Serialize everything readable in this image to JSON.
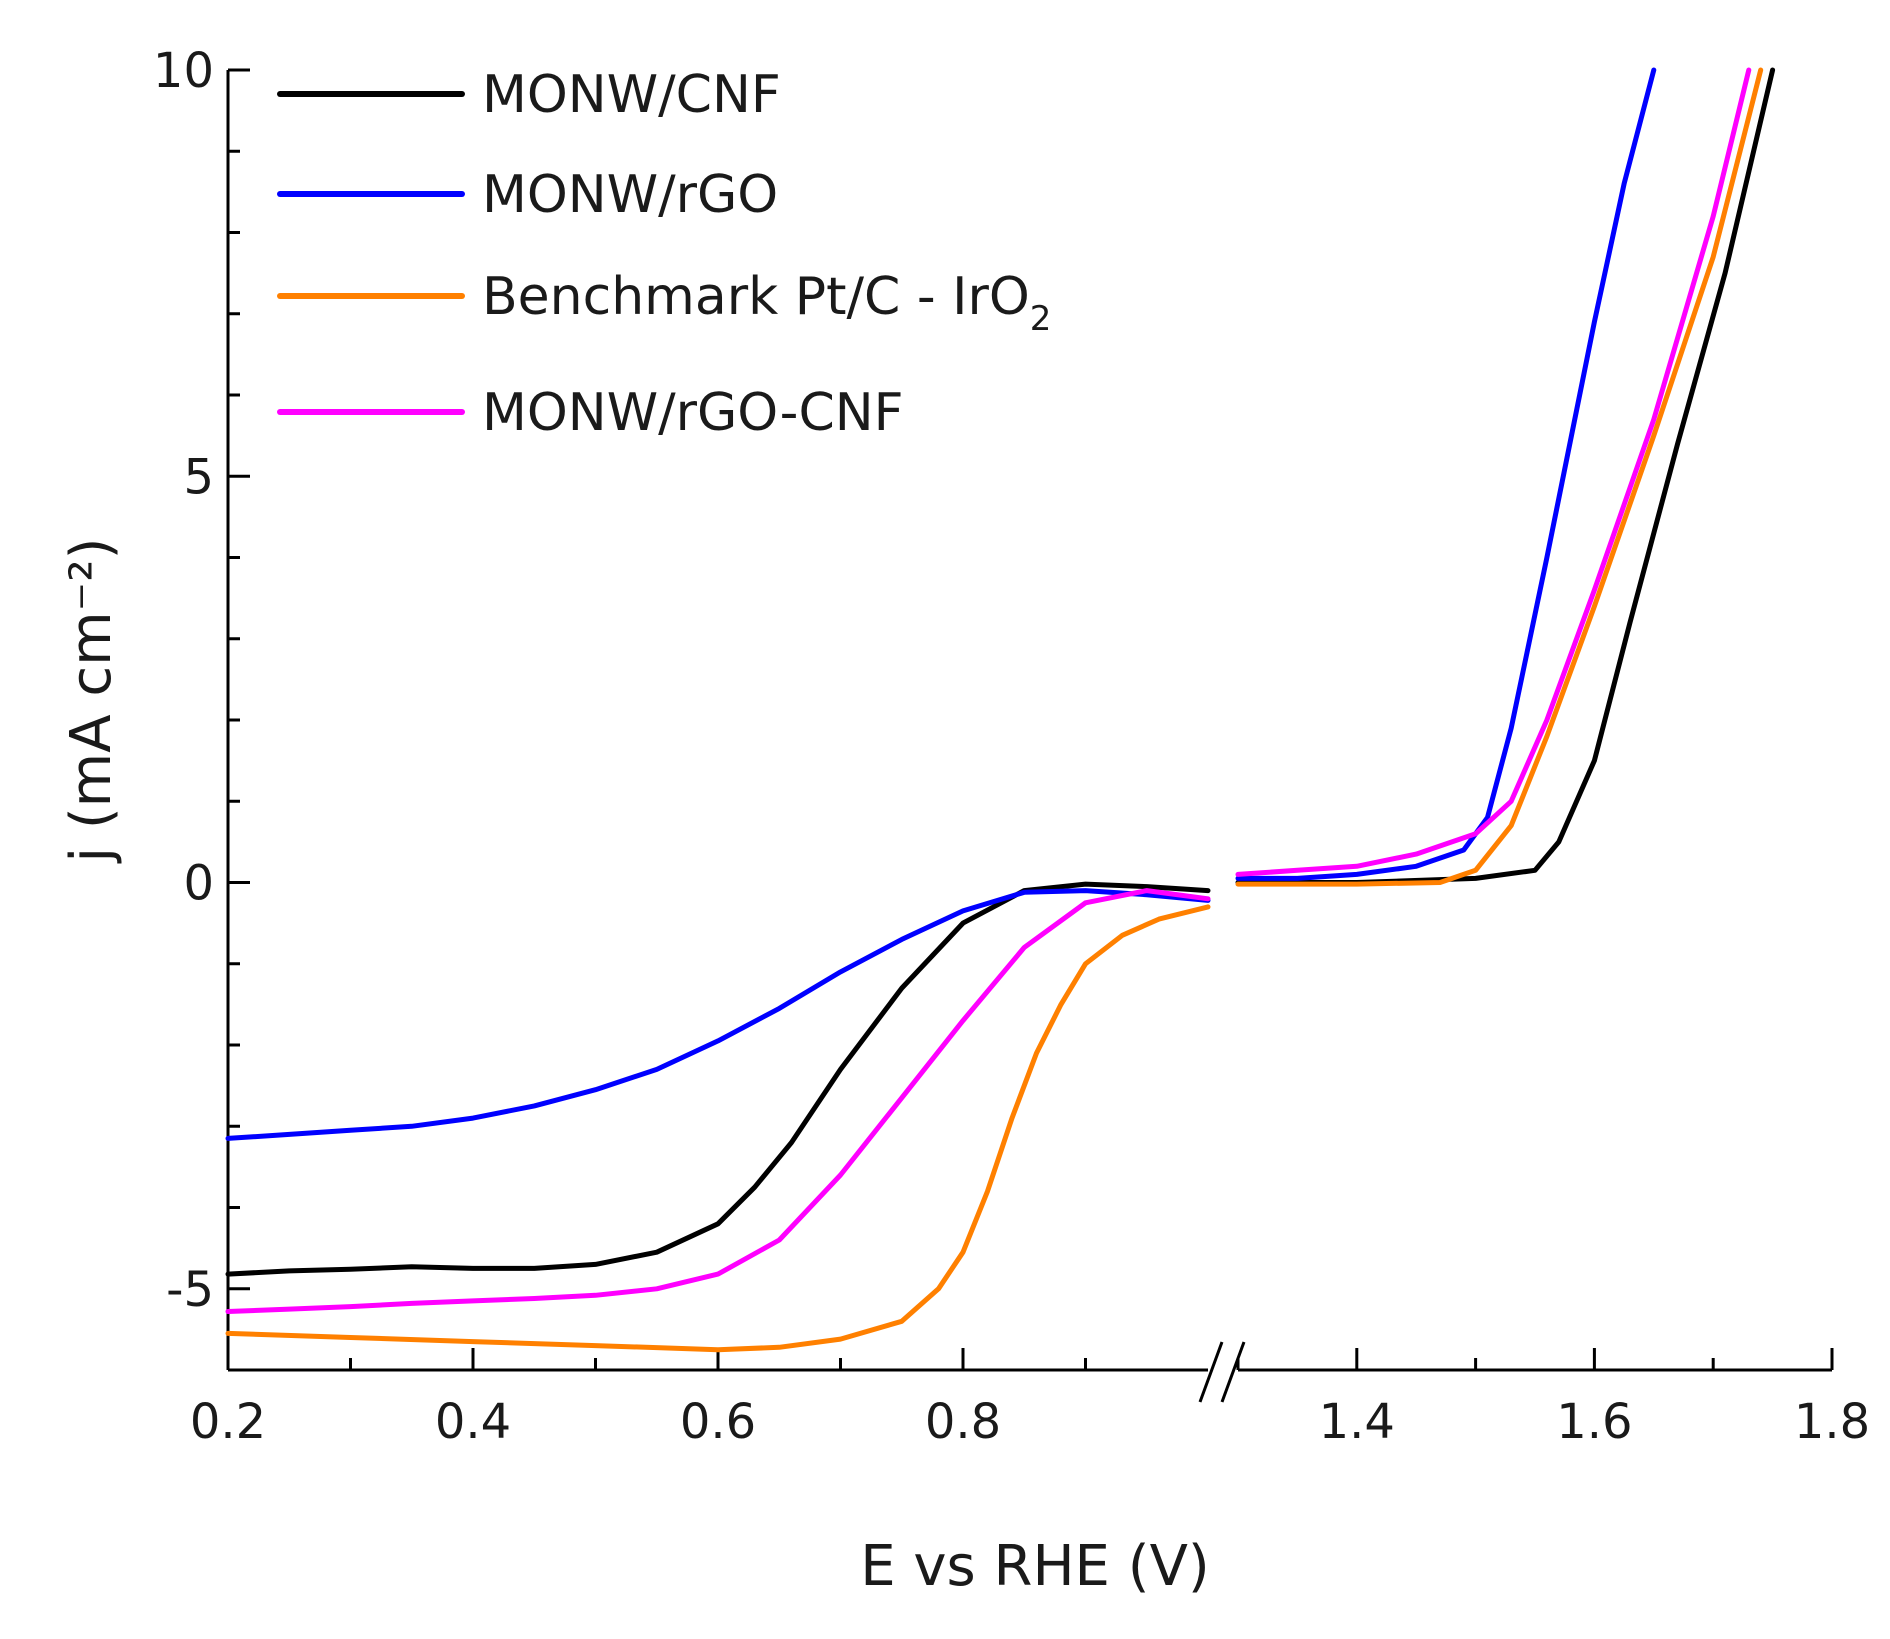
{
  "chart_data": {
    "type": "line",
    "title": "",
    "xlabel": "E vs RHE (V)",
    "ylabel": "j (mA cm⁻²)",
    "xlim_left": [
      0.2,
      1.0
    ],
    "xlim_right": [
      1.3,
      1.8
    ],
    "ylim": [
      -6,
      10
    ],
    "axis_break": "between 1.0 and 1.3 V",
    "x_ticks_left": [
      "0.2",
      "0.4",
      "0.6",
      "0.8"
    ],
    "x_ticks_right": [
      "1.4",
      "1.6",
      "1.8"
    ],
    "y_ticks": [
      "10",
      "5",
      "0",
      "-5"
    ],
    "legend_position": "top-left",
    "series": [
      {
        "name": "MONW/CNF",
        "color": "#000000",
        "left": [
          [
            0.2,
            -4.82
          ],
          [
            0.25,
            -4.78
          ],
          [
            0.3,
            -4.76
          ],
          [
            0.35,
            -4.73
          ],
          [
            0.4,
            -4.75
          ],
          [
            0.45,
            -4.75
          ],
          [
            0.5,
            -4.7
          ],
          [
            0.55,
            -4.55
          ],
          [
            0.6,
            -4.2
          ],
          [
            0.63,
            -3.75
          ],
          [
            0.66,
            -3.2
          ],
          [
            0.7,
            -2.3
          ],
          [
            0.75,
            -1.3
          ],
          [
            0.8,
            -0.5
          ],
          [
            0.85,
            -0.1
          ],
          [
            0.9,
            -0.02
          ],
          [
            0.95,
            -0.05
          ],
          [
            1.0,
            -0.1
          ]
        ],
        "right": [
          [
            1.3,
            0.0
          ],
          [
            1.4,
            0.0
          ],
          [
            1.5,
            0.05
          ],
          [
            1.55,
            0.15
          ],
          [
            1.57,
            0.5
          ],
          [
            1.6,
            1.5
          ],
          [
            1.63,
            3.2
          ],
          [
            1.67,
            5.4
          ],
          [
            1.71,
            7.5
          ],
          [
            1.75,
            10.0
          ]
        ]
      },
      {
        "name": "MONW/rGO",
        "color": "#0000ff",
        "left": [
          [
            0.2,
            -3.15
          ],
          [
            0.25,
            -3.1
          ],
          [
            0.3,
            -3.05
          ],
          [
            0.35,
            -3.0
          ],
          [
            0.4,
            -2.9
          ],
          [
            0.45,
            -2.75
          ],
          [
            0.5,
            -2.55
          ],
          [
            0.55,
            -2.3
          ],
          [
            0.6,
            -1.95
          ],
          [
            0.65,
            -1.55
          ],
          [
            0.7,
            -1.1
          ],
          [
            0.75,
            -0.7
          ],
          [
            0.8,
            -0.35
          ],
          [
            0.85,
            -0.12
          ],
          [
            0.9,
            -0.1
          ],
          [
            0.95,
            -0.15
          ],
          [
            1.0,
            -0.22
          ]
        ],
        "right": [
          [
            1.3,
            0.05
          ],
          [
            1.35,
            0.05
          ],
          [
            1.4,
            0.1
          ],
          [
            1.45,
            0.2
          ],
          [
            1.49,
            0.4
          ],
          [
            1.51,
            0.8
          ],
          [
            1.53,
            1.9
          ],
          [
            1.56,
            4.0
          ],
          [
            1.6,
            6.9
          ],
          [
            1.625,
            8.6
          ],
          [
            1.65,
            10.0
          ]
        ]
      },
      {
        "name": "Benchmark Pt/C - IrO₂",
        "legend_main": "Benchmark Pt/C - IrO",
        "legend_sub": "2",
        "color": "#ff8000",
        "left": [
          [
            0.2,
            -5.55
          ],
          [
            0.3,
            -5.6
          ],
          [
            0.4,
            -5.65
          ],
          [
            0.5,
            -5.7
          ],
          [
            0.6,
            -5.75
          ],
          [
            0.65,
            -5.72
          ],
          [
            0.7,
            -5.62
          ],
          [
            0.75,
            -5.4
          ],
          [
            0.78,
            -5.0
          ],
          [
            0.8,
            -4.55
          ],
          [
            0.82,
            -3.8
          ],
          [
            0.84,
            -2.9
          ],
          [
            0.86,
            -2.1
          ],
          [
            0.88,
            -1.5
          ],
          [
            0.9,
            -1.0
          ],
          [
            0.93,
            -0.65
          ],
          [
            0.96,
            -0.45
          ],
          [
            1.0,
            -0.3
          ]
        ],
        "right": [
          [
            1.3,
            -0.02
          ],
          [
            1.4,
            -0.02
          ],
          [
            1.47,
            0.0
          ],
          [
            1.5,
            0.15
          ],
          [
            1.53,
            0.7
          ],
          [
            1.56,
            1.8
          ],
          [
            1.6,
            3.4
          ],
          [
            1.65,
            5.5
          ],
          [
            1.7,
            7.7
          ],
          [
            1.74,
            10.0
          ]
        ]
      },
      {
        "name": "MONW/rGO-CNF",
        "color": "#ff00ff",
        "left": [
          [
            0.2,
            -5.28
          ],
          [
            0.25,
            -5.25
          ],
          [
            0.3,
            -5.22
          ],
          [
            0.35,
            -5.18
          ],
          [
            0.4,
            -5.15
          ],
          [
            0.45,
            -5.12
          ],
          [
            0.5,
            -5.08
          ],
          [
            0.55,
            -5.0
          ],
          [
            0.6,
            -4.82
          ],
          [
            0.65,
            -4.4
          ],
          [
            0.7,
            -3.6
          ],
          [
            0.75,
            -2.65
          ],
          [
            0.8,
            -1.7
          ],
          [
            0.85,
            -0.8
          ],
          [
            0.9,
            -0.25
          ],
          [
            0.95,
            -0.1
          ],
          [
            1.0,
            -0.2
          ]
        ],
        "right": [
          [
            1.3,
            0.1
          ],
          [
            1.35,
            0.15
          ],
          [
            1.4,
            0.2
          ],
          [
            1.45,
            0.35
          ],
          [
            1.5,
            0.6
          ],
          [
            1.53,
            1.0
          ],
          [
            1.56,
            2.0
          ],
          [
            1.6,
            3.6
          ],
          [
            1.65,
            5.7
          ],
          [
            1.7,
            8.2
          ],
          [
            1.73,
            10.0
          ]
        ]
      }
    ]
  }
}
